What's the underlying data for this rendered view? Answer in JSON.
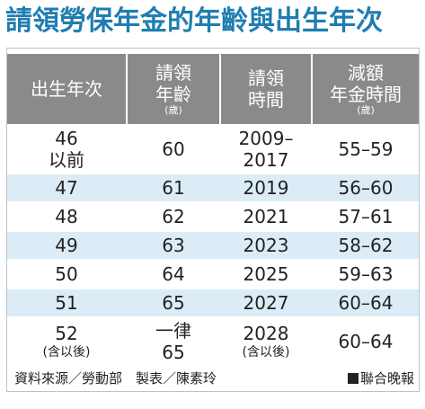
{
  "title": "請領勞保年金的年齡與出生年次",
  "header": {
    "col1": "出生年次",
    "col2_line1": "請領",
    "col2_line2": "年齡",
    "col2_unit": "(歲)",
    "col3_line1": "請領",
    "col3_line2": "時間",
    "col4_line1": "減額",
    "col4_line2": "年金時間",
    "col4_unit": "(歲)"
  },
  "rows": [
    {
      "birth": "46",
      "birth_note": "以前",
      "age": "60",
      "age_line1": "",
      "period": "2009–",
      "period_line2": "2017",
      "reduced": "55–59"
    },
    {
      "birth": "47",
      "birth_note": "",
      "age": "61",
      "age_line1": "",
      "period": "2019",
      "period_line2": "",
      "reduced": "56–60"
    },
    {
      "birth": "48",
      "birth_note": "",
      "age": "62",
      "age_line1": "",
      "period": "2021",
      "period_line2": "",
      "reduced": "57–61"
    },
    {
      "birth": "49",
      "birth_note": "",
      "age": "63",
      "age_line1": "",
      "period": "2023",
      "period_line2": "",
      "reduced": "58–62"
    },
    {
      "birth": "50",
      "birth_note": "",
      "age": "64",
      "age_line1": "",
      "period": "2025",
      "period_line2": "",
      "reduced": "59–63"
    },
    {
      "birth": "51",
      "birth_note": "",
      "age": "65",
      "age_line1": "",
      "period": "2027",
      "period_line2": "",
      "reduced": "60–64"
    },
    {
      "birth": "52",
      "birth_note": "(含以後)",
      "age": "65",
      "age_line1": "一律",
      "period": "2028",
      "period_line2": "(含以後)",
      "reduced": "60–64"
    }
  ],
  "footer": {
    "source": "資料來源／勞動部　製表／陳素玲",
    "brand": "聯合晚報"
  }
}
